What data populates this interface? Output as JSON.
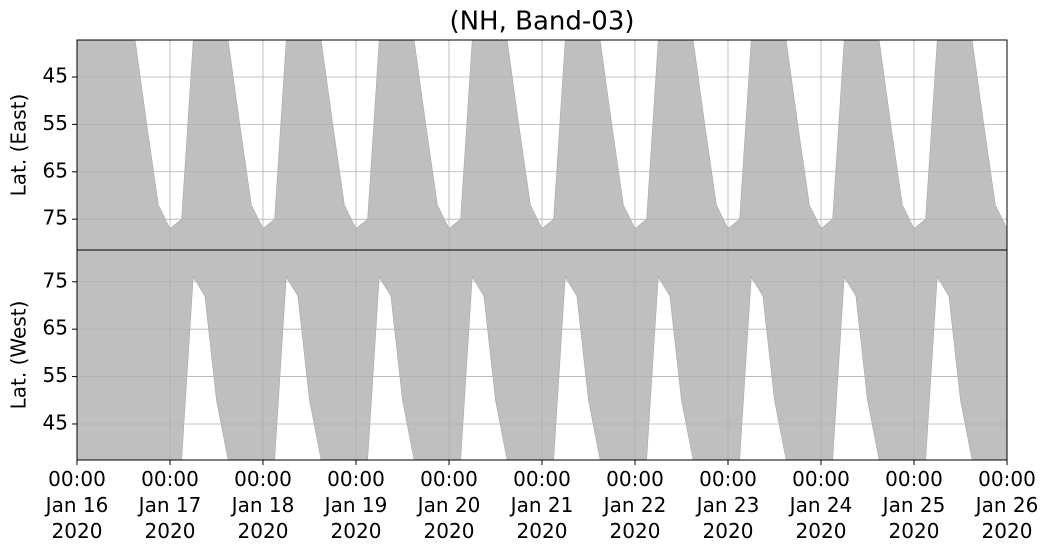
{
  "chart_data": [
    {
      "type": "area",
      "title": "(NH, Band-03)",
      "ylabel": "Lat. (East)",
      "color": "#bfbfbf",
      "grid": true,
      "inverted": true,
      "x": [
        "2020-01-16T00:00",
        "2020-01-16T03:00",
        "2020-01-16T06:00",
        "2020-01-16T09:00",
        "2020-01-16T12:00",
        "2020-01-16T15:00",
        "2020-01-16T18:00",
        "2020-01-16T21:00",
        "2020-01-17T00:00",
        "2020-01-17T03:00",
        "2020-01-17T06:00",
        "2020-01-17T09:00",
        "2020-01-17T12:00",
        "2020-01-17T15:00",
        "2020-01-17T18:00",
        "2020-01-17T21:00",
        "2020-01-18T00:00",
        "2020-01-18T03:00",
        "2020-01-18T06:00",
        "2020-01-18T09:00",
        "2020-01-18T12:00",
        "2020-01-18T15:00",
        "2020-01-18T18:00",
        "2020-01-18T21:00",
        "2020-01-19T00:00",
        "2020-01-19T03:00",
        "2020-01-19T06:00",
        "2020-01-19T09:00",
        "2020-01-19T12:00",
        "2020-01-19T15:00",
        "2020-01-19T18:00",
        "2020-01-19T21:00",
        "2020-01-20T00:00",
        "2020-01-20T03:00",
        "2020-01-20T06:00",
        "2020-01-20T09:00",
        "2020-01-20T12:00",
        "2020-01-20T15:00",
        "2020-01-20T18:00",
        "2020-01-20T21:00",
        "2020-01-21T00:00",
        "2020-01-21T03:00",
        "2020-01-21T06:00",
        "2020-01-21T09:00",
        "2020-01-21T12:00",
        "2020-01-21T15:00",
        "2020-01-21T18:00",
        "2020-01-21T21:00",
        "2020-01-22T00:00",
        "2020-01-22T03:00",
        "2020-01-22T06:00",
        "2020-01-22T09:00",
        "2020-01-22T12:00",
        "2020-01-22T15:00",
        "2020-01-22T18:00",
        "2020-01-22T21:00",
        "2020-01-23T00:00",
        "2020-01-23T03:00",
        "2020-01-23T06:00",
        "2020-01-23T09:00",
        "2020-01-23T12:00",
        "2020-01-23T15:00",
        "2020-01-23T18:00",
        "2020-01-23T21:00",
        "2020-01-24T00:00",
        "2020-01-24T03:00",
        "2020-01-24T06:00",
        "2020-01-24T09:00",
        "2020-01-24T12:00",
        "2020-01-24T15:00",
        "2020-01-24T18:00",
        "2020-01-24T21:00",
        "2020-01-25T00:00",
        "2020-01-25T03:00",
        "2020-01-25T06:00",
        "2020-01-25T09:00",
        "2020-01-25T12:00",
        "2020-01-25T15:00",
        "2020-01-25T18:00",
        "2020-01-25T21:00",
        "2020-01-26T00:00"
      ],
      "values": [
        37.2,
        37.2,
        37.2,
        37.2,
        37.2,
        37.2,
        55,
        72,
        77,
        75,
        37.2,
        37.2,
        37.2,
        37.2,
        55,
        72,
        77,
        75,
        37.2,
        37.2,
        37.2,
        37.2,
        55,
        72,
        77,
        75,
        37.2,
        37.2,
        37.2,
        37.2,
        55,
        72,
        77,
        75,
        37.2,
        37.2,
        37.2,
        37.2,
        55,
        72,
        77,
        75,
        37.2,
        37.2,
        37.2,
        37.2,
        55,
        72,
        77,
        75,
        37.2,
        37.2,
        37.2,
        37.2,
        55,
        72,
        77,
        75,
        37.2,
        37.2,
        37.2,
        37.2,
        55,
        72,
        77,
        75,
        37.2,
        37.2,
        37.2,
        37.2,
        55,
        72,
        77,
        75,
        37.2,
        37.2,
        37.2,
        37.2,
        55,
        72,
        77
      ],
      "xlim": [
        "2020-01-16T00:00",
        "2020-01-26T00:00"
      ],
      "ylim": [
        37.2,
        81.5
      ],
      "yticks": [
        45,
        55,
        65,
        75
      ]
    },
    {
      "type": "area",
      "ylabel": "Lat. (West)",
      "color": "#bfbfbf",
      "grid": true,
      "inverted": false,
      "x": [
        "2020-01-16T00:00",
        "2020-01-16T03:00",
        "2020-01-16T06:00",
        "2020-01-16T09:00",
        "2020-01-16T12:00",
        "2020-01-16T15:00",
        "2020-01-16T18:00",
        "2020-01-16T21:00",
        "2020-01-17T00:00",
        "2020-01-17T03:00",
        "2020-01-17T06:00",
        "2020-01-17T09:00",
        "2020-01-17T12:00",
        "2020-01-17T15:00",
        "2020-01-17T18:00",
        "2020-01-17T21:00",
        "2020-01-18T00:00",
        "2020-01-18T03:00",
        "2020-01-18T06:00",
        "2020-01-18T09:00",
        "2020-01-18T12:00",
        "2020-01-18T15:00",
        "2020-01-18T18:00",
        "2020-01-18T21:00",
        "2020-01-19T00:00",
        "2020-01-19T03:00",
        "2020-01-19T06:00",
        "2020-01-19T09:00",
        "2020-01-19T12:00",
        "2020-01-19T15:00",
        "2020-01-19T18:00",
        "2020-01-19T21:00",
        "2020-01-20T00:00",
        "2020-01-20T03:00",
        "2020-01-20T06:00",
        "2020-01-20T09:00",
        "2020-01-20T12:00",
        "2020-01-20T15:00",
        "2020-01-20T18:00",
        "2020-01-20T21:00",
        "2020-01-21T00:00",
        "2020-01-21T03:00",
        "2020-01-21T06:00",
        "2020-01-21T09:00",
        "2020-01-21T12:00",
        "2020-01-21T15:00",
        "2020-01-21T18:00",
        "2020-01-21T21:00",
        "2020-01-22T00:00",
        "2020-01-22T03:00",
        "2020-01-22T06:00",
        "2020-01-22T09:00",
        "2020-01-22T12:00",
        "2020-01-22T15:00",
        "2020-01-22T18:00",
        "2020-01-22T21:00",
        "2020-01-23T00:00",
        "2020-01-23T03:00",
        "2020-01-23T06:00",
        "2020-01-23T09:00",
        "2020-01-23T12:00",
        "2020-01-23T15:00",
        "2020-01-23T18:00",
        "2020-01-23T21:00",
        "2020-01-24T00:00",
        "2020-01-24T03:00",
        "2020-01-24T06:00",
        "2020-01-24T09:00",
        "2020-01-24T12:00",
        "2020-01-24T15:00",
        "2020-01-24T18:00",
        "2020-01-24T21:00",
        "2020-01-25T00:00",
        "2020-01-25T03:00",
        "2020-01-25T06:00",
        "2020-01-25T09:00",
        "2020-01-25T12:00",
        "2020-01-25T15:00",
        "2020-01-25T18:00",
        "2020-01-25T21:00",
        "2020-01-26T00:00"
      ],
      "values": [
        37.4,
        37.4,
        37.4,
        37.4,
        37.4,
        37.4,
        37.4,
        37.4,
        37.4,
        37.4,
        76,
        72,
        50,
        37.4,
        37.4,
        37.4,
        37.4,
        37.4,
        76,
        72,
        50,
        37.4,
        37.4,
        37.4,
        37.4,
        37.4,
        76,
        72,
        50,
        37.4,
        37.4,
        37.4,
        37.4,
        37.4,
        76,
        72,
        50,
        37.4,
        37.4,
        37.4,
        37.4,
        37.4,
        76,
        72,
        50,
        37.4,
        37.4,
        37.4,
        37.4,
        37.4,
        76,
        72,
        50,
        37.4,
        37.4,
        37.4,
        37.4,
        37.4,
        76,
        72,
        50,
        37.4,
        37.4,
        37.4,
        37.4,
        37.4,
        76,
        72,
        50,
        37.4,
        37.4,
        37.4,
        37.4,
        37.4,
        76,
        72,
        50,
        37.4,
        37.4,
        37.4,
        37.4
      ],
      "xlim": [
        "2020-01-16T00:00",
        "2020-01-26T00:00"
      ],
      "ylim": [
        37.4,
        81.7
      ],
      "yticks": [
        45,
        55,
        65,
        75
      ],
      "xticks": [
        {
          "value": "2020-01-16T00:00",
          "label": "00:00\nJan 16\n2020"
        },
        {
          "value": "2020-01-17T00:00",
          "label": "00:00\nJan 17\n2020"
        },
        {
          "value": "2020-01-18T00:00",
          "label": "00:00\nJan 18\n2020"
        },
        {
          "value": "2020-01-19T00:00",
          "label": "00:00\nJan 19\n2020"
        },
        {
          "value": "2020-01-20T00:00",
          "label": "00:00\nJan 20\n2020"
        },
        {
          "value": "2020-01-21T00:00",
          "label": "00:00\nJan 21\n2020"
        },
        {
          "value": "2020-01-22T00:00",
          "label": "00:00\nJan 22\n2020"
        },
        {
          "value": "2020-01-23T00:00",
          "label": "00:00\nJan 23\n2020"
        },
        {
          "value": "2020-01-24T00:00",
          "label": "00:00\nJan 24\n2020"
        },
        {
          "value": "2020-01-25T00:00",
          "label": "00:00\nJan 25\n2020"
        },
        {
          "value": "2020-01-26T00:00",
          "label": "00:00\nJan 26\n2020"
        }
      ]
    }
  ]
}
